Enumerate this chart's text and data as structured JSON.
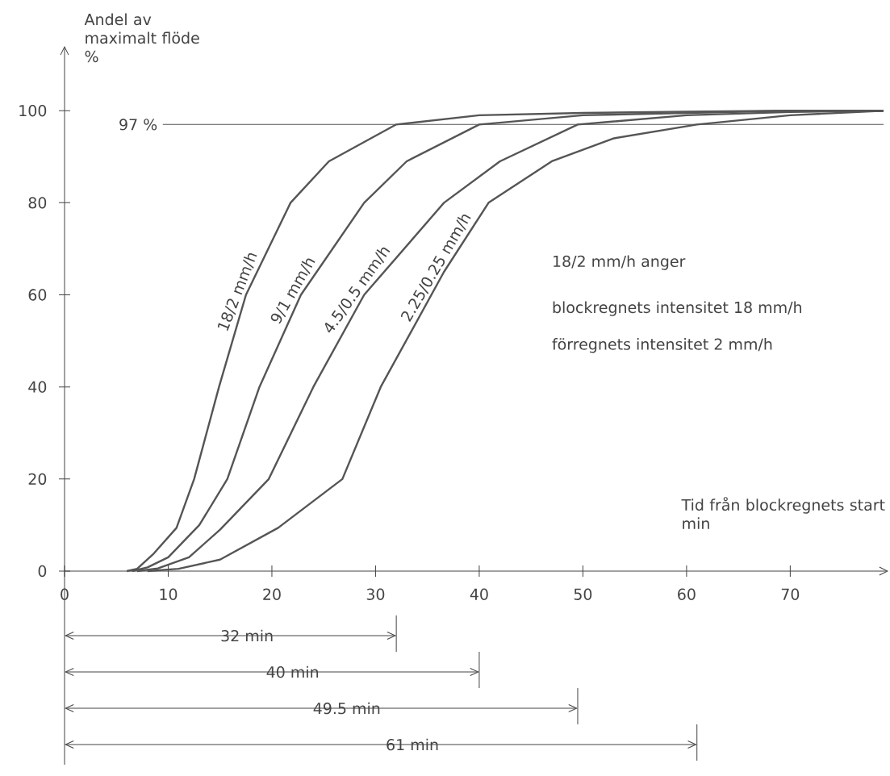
{
  "chart_data": {
    "type": "line",
    "xlabel": "Tid från blockregnets start min",
    "ylabel": "Andel av maximalt flöde %",
    "xlim": [
      0,
      79
    ],
    "ylim": [
      0,
      113
    ],
    "xticks": [
      0,
      10,
      20,
      30,
      40,
      50,
      60,
      70
    ],
    "yticks": [
      0,
      20,
      40,
      60,
      80,
      100
    ],
    "grid": false,
    "legend": false,
    "marker": "none",
    "line_style": "solid",
    "ref_lines": [
      {
        "axis": "y",
        "value": 97,
        "label": "97 %",
        "color": "#555555"
      }
    ],
    "series": [
      {
        "name": "18/2 mm/h",
        "color": "#555555",
        "x": [
          6,
          7,
          8.6,
          10.8,
          12.5,
          14.9,
          17.5,
          21.8,
          25.5,
          32,
          40,
          50,
          60,
          70,
          79
        ],
        "values": [
          0,
          0.5,
          3.8,
          9.4,
          20,
          40,
          60,
          80,
          89,
          97,
          99,
          99.5,
          99.8,
          100,
          100
        ]
      },
      {
        "name": "9/1 mm/h",
        "color": "#555555",
        "x": [
          6.5,
          8,
          10,
          13,
          15.7,
          18.8,
          22.8,
          28.9,
          33,
          40,
          50,
          60,
          70,
          79
        ],
        "values": [
          0,
          0.8,
          3,
          10,
          20,
          40,
          60,
          80,
          89,
          97,
          99,
          99.5,
          100,
          100
        ]
      },
      {
        "name": "4.5/0.5 mm/h",
        "color": "#555555",
        "x": [
          7,
          9,
          12,
          15,
          19.7,
          24,
          28.9,
          36.6,
          42,
          49.5,
          60,
          70,
          79
        ],
        "values": [
          0,
          0.6,
          3,
          9,
          20,
          40,
          60,
          80,
          89,
          97,
          99,
          99.7,
          100
        ]
      },
      {
        "name": "2.25/0.25 mm/h",
        "color": "#555555",
        "x": [
          8,
          11,
          15,
          20.6,
          26.8,
          30.5,
          36.6,
          40.9,
          47,
          53,
          61,
          70,
          79
        ],
        "values": [
          0,
          0.5,
          2.5,
          9.4,
          20,
          40,
          65,
          80,
          89,
          94,
          97,
          99,
          100
        ]
      }
    ],
    "annotations": [
      "18/2  mm/h  anger",
      "blockregnets intensitet 18 mm/h",
      "förregnets intensitet 2 mm/h",
      "32 min",
      "40 min",
      "49.5 min",
      "61 min"
    ]
  }
}
